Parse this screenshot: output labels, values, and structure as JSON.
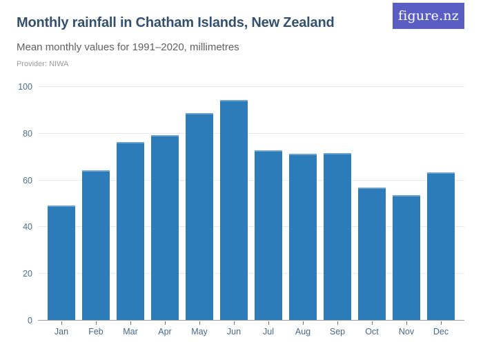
{
  "header": {
    "title": "Monthly rainfall in Chatham Islands, New Zealand",
    "subtitle": "Mean monthly values for 1991–2020, millimetres",
    "provider": "Provider: NIWA",
    "logo_text": "figure.nz"
  },
  "colors": {
    "bar": "#2d7cba",
    "bar_top_highlight": "#6fa3cc",
    "logo_background": "#5a5ec4",
    "title_text": "#33506f",
    "subtitle_text": "#606060",
    "provider_text": "#9b9b9b",
    "axis_label_text": "#4b6f8e",
    "gridline": "#e9e9e9",
    "axis_line": "#9b9b9b"
  },
  "chart_data": {
    "type": "bar",
    "title": "Monthly rainfall in Chatham Islands, New Zealand",
    "subtitle": "Mean monthly values for 1991–2020, millimetres",
    "unit": "millimetres",
    "categories": [
      "Jan",
      "Feb",
      "Mar",
      "Apr",
      "May",
      "Jun",
      "Jul",
      "Aug",
      "Sep",
      "Oct",
      "Nov",
      "Dec"
    ],
    "values": [
      49,
      64,
      76,
      79,
      88.5,
      94,
      72.5,
      71,
      71.5,
      56.5,
      53.5,
      63
    ],
    "xlabel": "",
    "ylabel": "",
    "ylim": [
      0,
      100
    ],
    "yticks": [
      0,
      20,
      40,
      60,
      80,
      100
    ],
    "grid": true,
    "legend": false
  }
}
